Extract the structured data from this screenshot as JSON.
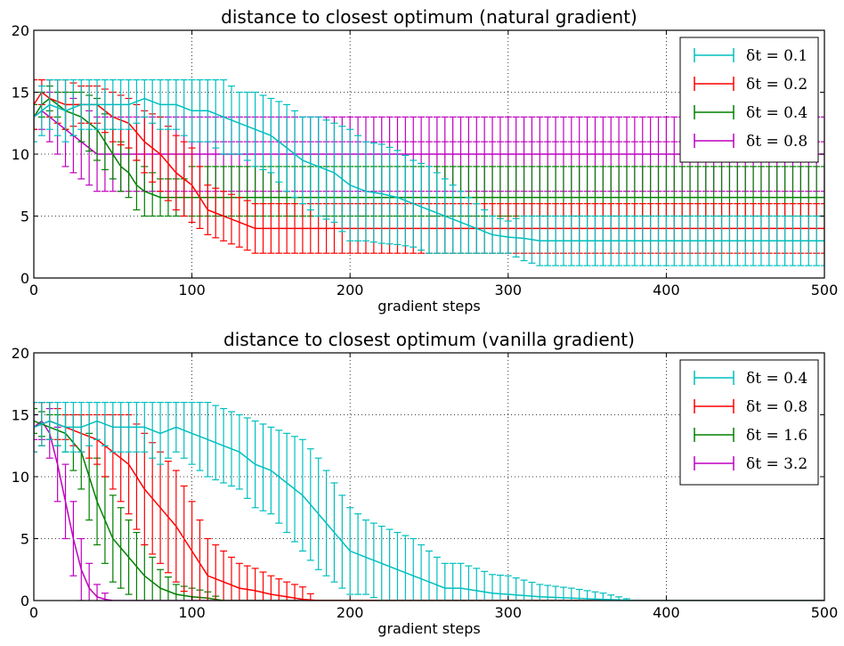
{
  "colors": {
    "cyan": "#00bfbf",
    "red": "#ff0000",
    "green": "#008000",
    "magenta": "#bf00bf"
  },
  "chart_data": [
    {
      "type": "line",
      "title": "distance to closest optimum (natural gradient)",
      "xlabel": "gradient steps",
      "ylabel": "",
      "xlim": [
        0,
        500
      ],
      "ylim": [
        0,
        20
      ],
      "xticks": [
        0,
        100,
        200,
        300,
        400,
        500
      ],
      "yticks": [
        0,
        5,
        10,
        15,
        20
      ],
      "grid": true,
      "legend_position": "top-right",
      "error_bars": true,
      "series": [
        {
          "name": "δt = 0.1",
          "color_key": "cyan",
          "x": [
            0,
            10,
            20,
            30,
            40,
            50,
            60,
            70,
            80,
            90,
            100,
            110,
            120,
            130,
            140,
            150,
            160,
            170,
            180,
            190,
            200,
            210,
            220,
            230,
            240,
            250,
            260,
            270,
            280,
            290,
            300,
            310,
            320,
            330,
            340,
            350,
            400,
            450,
            500
          ],
          "y": [
            13,
            14,
            13.5,
            14,
            14,
            14,
            14,
            14.5,
            14,
            14,
            13.5,
            13.5,
            13,
            12.5,
            12,
            11.5,
            10.5,
            9.5,
            9,
            8.5,
            7.5,
            7,
            6.8,
            6.5,
            6,
            5.5,
            5,
            4.5,
            4,
            3.5,
            3.3,
            3.2,
            3,
            3,
            3,
            3,
            3,
            3,
            3
          ],
          "err": [
            2,
            2,
            2.5,
            2,
            2,
            2,
            2,
            1.5,
            2,
            2,
            2.5,
            2.5,
            3,
            2.5,
            3,
            3,
            3.5,
            3.5,
            4,
            4,
            4.5,
            4,
            4,
            3.8,
            3.5,
            3.5,
            3,
            2.5,
            2,
            1.5,
            1.3,
            1.8,
            2,
            2,
            2,
            2,
            2,
            2,
            2
          ]
        },
        {
          "name": "δt = 0.2",
          "color_key": "red",
          "x": [
            0,
            5,
            10,
            20,
            30,
            40,
            50,
            60,
            70,
            80,
            90,
            100,
            110,
            120,
            130,
            140,
            150,
            200,
            250,
            300,
            350,
            400,
            450,
            500
          ],
          "y": [
            14,
            15,
            14.5,
            14,
            14,
            14,
            13,
            12.5,
            11,
            10,
            8.5,
            7.5,
            5.5,
            5,
            4.5,
            4,
            4,
            4,
            4,
            4,
            4,
            4,
            4,
            4
          ],
          "err": [
            2,
            1,
            1.5,
            2,
            1.5,
            1.5,
            2,
            2,
            2.5,
            3,
            3,
            3,
            2,
            2,
            2,
            2,
            2,
            2,
            2,
            2,
            2,
            2,
            2,
            2
          ]
        },
        {
          "name": "δt = 0.4",
          "color_key": "green",
          "x": [
            0,
            5,
            10,
            15,
            20,
            30,
            40,
            50,
            55,
            60,
            65,
            70,
            80,
            90,
            100,
            150,
            200,
            300,
            400,
            500
          ],
          "y": [
            13,
            14,
            14.5,
            14,
            13.5,
            13,
            12,
            10,
            9,
            8.5,
            7.5,
            7,
            6.5,
            6.5,
            6.5,
            6.5,
            6.5,
            6.5,
            6.5,
            6.5
          ],
          "err": [
            1,
            1,
            1,
            1,
            1.5,
            2,
            2.5,
            2,
            2,
            2,
            2,
            2,
            1.5,
            1.5,
            1.5,
            1.5,
            1.5,
            1.5,
            1.5,
            1.5
          ],
          "band_low": 5,
          "band_high": 9
        },
        {
          "name": "δt = 0.8",
          "color_key": "magenta",
          "x": [
            0,
            5,
            10,
            15,
            20,
            25,
            30,
            40,
            50,
            100,
            200,
            300,
            400,
            500
          ],
          "y": [
            13,
            13.5,
            13,
            12.5,
            12,
            11.5,
            11,
            10,
            10,
            10,
            10,
            10,
            10,
            10
          ],
          "err": [
            1,
            1.5,
            2,
            2.5,
            3,
            3,
            3,
            3,
            3,
            3,
            3,
            3,
            3,
            3
          ],
          "band_low": 7,
          "band_high": 13,
          "mid": 11
        }
      ]
    },
    {
      "type": "line",
      "title": "distance to closest optimum (vanilla gradient)",
      "xlabel": "gradient steps",
      "ylabel": "",
      "xlim": [
        0,
        500
      ],
      "ylim": [
        0,
        20
      ],
      "xticks": [
        0,
        100,
        200,
        300,
        400,
        500
      ],
      "yticks": [
        0,
        5,
        10,
        15,
        20
      ],
      "grid": true,
      "legend_position": "top-right",
      "error_bars": true,
      "series": [
        {
          "name": "δt = 0.4",
          "color_key": "cyan",
          "x": [
            0,
            10,
            20,
            30,
            40,
            50,
            60,
            70,
            80,
            90,
            100,
            110,
            120,
            130,
            140,
            150,
            160,
            170,
            180,
            190,
            200,
            210,
            220,
            230,
            240,
            250,
            260,
            270,
            280,
            290,
            300,
            320,
            340,
            360,
            380,
            400,
            450,
            500
          ],
          "y": [
            14,
            14.5,
            14,
            14,
            14.5,
            14,
            14,
            14,
            13.5,
            14,
            13.5,
            13,
            12.5,
            12,
            11,
            10.5,
            9.5,
            8.5,
            7,
            5.5,
            4,
            3.5,
            3,
            2.5,
            2,
            1.5,
            1,
            1,
            0.8,
            0.6,
            0.5,
            0.3,
            0.2,
            0.1,
            0,
            0,
            0,
            0
          ],
          "err": [
            2,
            1.5,
            2,
            2,
            1.5,
            2,
            2,
            2,
            2.5,
            2,
            2.5,
            3,
            3,
            3,
            3.5,
            3.5,
            4,
            4.5,
            4.5,
            4,
            3.5,
            3,
            3,
            3,
            3,
            2.5,
            2,
            2,
            1.8,
            1.5,
            1.5,
            1,
            0.8,
            0.5,
            0,
            0,
            0,
            0
          ]
        },
        {
          "name": "δt = 0.8",
          "color_key": "red",
          "x": [
            0,
            10,
            20,
            30,
            40,
            50,
            60,
            70,
            80,
            90,
            100,
            110,
            120,
            130,
            140,
            150,
            160,
            170,
            180,
            200,
            300,
            400,
            500
          ],
          "y": [
            14,
            14.5,
            14,
            13.5,
            13,
            12,
            11,
            9,
            7.5,
            6,
            4,
            2,
            1.5,
            1,
            0.8,
            0.5,
            0.3,
            0.1,
            0,
            0,
            0,
            0,
            0
          ],
          "err": [
            2,
            1.5,
            1,
            1.5,
            2,
            3,
            4,
            4.5,
            4.5,
            4.5,
            4,
            3,
            2.5,
            2,
            1.8,
            1.5,
            1.2,
            1,
            0,
            0,
            0,
            0,
            0
          ]
        },
        {
          "name": "δt = 1.6",
          "color_key": "green",
          "x": [
            0,
            10,
            20,
            30,
            35,
            40,
            50,
            60,
            70,
            80,
            90,
            100,
            110,
            120,
            200,
            300,
            400,
            500
          ],
          "y": [
            14.5,
            14,
            13.5,
            12,
            10,
            8,
            5,
            3.5,
            2,
            1,
            0.5,
            0.3,
            0.2,
            0,
            0,
            0,
            0,
            0
          ],
          "err": [
            1,
            1,
            1.5,
            3,
            3.5,
            3.5,
            3.5,
            3,
            2.5,
            1.5,
            0.8,
            0.7,
            0.5,
            0,
            0,
            0,
            0,
            0
          ]
        },
        {
          "name": "δt = 3.2",
          "color_key": "magenta",
          "x": [
            0,
            5,
            10,
            15,
            20,
            25,
            30,
            35,
            40,
            45,
            50,
            100,
            200,
            300,
            400,
            500
          ],
          "y": [
            14,
            14.5,
            13.5,
            11,
            8,
            5,
            2.5,
            1,
            0.3,
            0.1,
            0,
            0,
            0,
            0,
            0,
            0
          ],
          "err": [
            1,
            1.5,
            2,
            3,
            3,
            3,
            2.5,
            2,
            1,
            0.5,
            0,
            0,
            0,
            0,
            0,
            0
          ]
        }
      ]
    }
  ]
}
